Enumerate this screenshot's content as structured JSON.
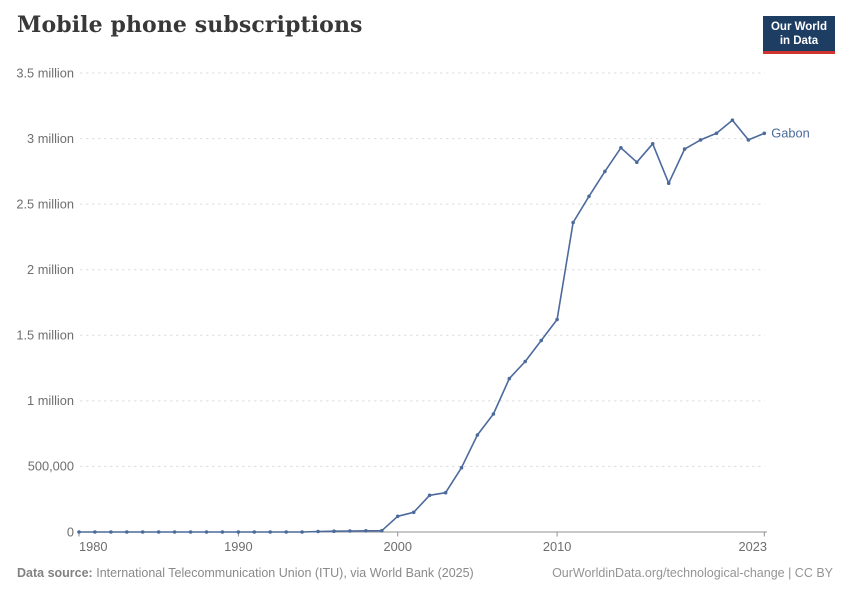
{
  "header": {
    "title": "Mobile phone subscriptions",
    "logo": {
      "line1": "Our World",
      "line2": "in Data"
    }
  },
  "footer": {
    "source_label": "Data source:",
    "source_text": "International Telecommunication Union (ITU), via World Bank (2025)",
    "link_text": "OurWorldinData.org/technological-change | CC BY"
  },
  "colors": {
    "line": "#4c6a9c",
    "entity_label": "#4c6a9c",
    "grid": "#dedede",
    "axis": "#8f8f8f",
    "tick_label": "#6e6e6e",
    "title": "#383838",
    "logo_bg": "#1d3d63",
    "logo_red": "#cf342e"
  },
  "chart_data": {
    "type": "line",
    "title": "Mobile phone subscriptions",
    "xlabel": "",
    "ylabel": "",
    "grid": "horizontal-dashed",
    "legend_position": "end-of-line-label",
    "xlim": [
      1980,
      2023
    ],
    "ylim": [
      0,
      3500000
    ],
    "x_ticks": [
      {
        "value": 1980,
        "label": "1980"
      },
      {
        "value": 1990,
        "label": "1990"
      },
      {
        "value": 2000,
        "label": "2000"
      },
      {
        "value": 2010,
        "label": "2010"
      },
      {
        "value": 2023,
        "label": "2023"
      }
    ],
    "y_ticks": [
      {
        "value": 0,
        "label": "0"
      },
      {
        "value": 500000,
        "label": "500,000"
      },
      {
        "value": 1000000,
        "label": "1 million"
      },
      {
        "value": 1500000,
        "label": "1.5 million"
      },
      {
        "value": 2000000,
        "label": "2 million"
      },
      {
        "value": 2500000,
        "label": "2.5 million"
      },
      {
        "value": 3000000,
        "label": "3 million"
      },
      {
        "value": 3500000,
        "label": "3.5 million"
      }
    ],
    "x": [
      1980,
      1981,
      1982,
      1983,
      1984,
      1985,
      1986,
      1987,
      1988,
      1989,
      1990,
      1991,
      1992,
      1993,
      1994,
      1995,
      1996,
      1997,
      1998,
      1999,
      2000,
      2001,
      2002,
      2003,
      2004,
      2005,
      2006,
      2007,
      2008,
      2009,
      2010,
      2011,
      2012,
      2013,
      2014,
      2015,
      2016,
      2017,
      2018,
      2019,
      2020,
      2021,
      2022,
      2023
    ],
    "series": [
      {
        "name": "Gabon",
        "values": [
          0,
          0,
          0,
          0,
          0,
          0,
          0,
          0,
          0,
          0,
          0,
          0,
          0,
          0,
          0,
          4000,
          6000,
          8000,
          9500,
          10000,
          120000,
          150000,
          280000,
          300000,
          490000,
          740000,
          900000,
          1170000,
          1300000,
          1460000,
          1620000,
          2360000,
          2560000,
          2750000,
          2930000,
          2820000,
          2960000,
          2660000,
          2920000,
          2990000,
          3040000,
          3140000,
          2990000,
          3040000
        ]
      }
    ]
  }
}
